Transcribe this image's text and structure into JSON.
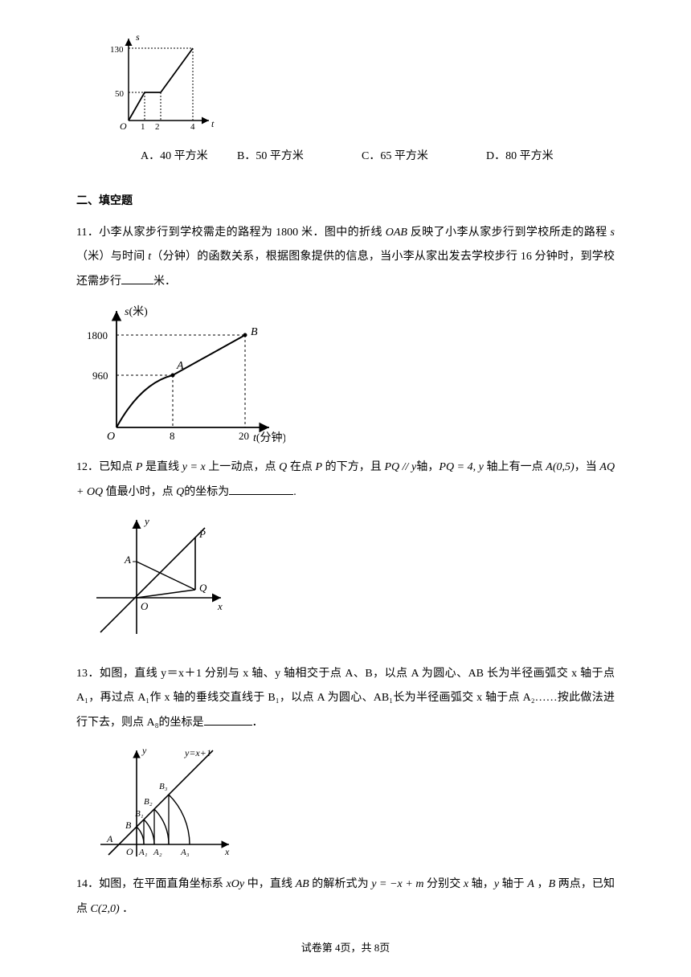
{
  "chart1": {
    "yaxis_label": "s",
    "xaxis_label": "t",
    "y_ticks": [
      "50",
      "130"
    ],
    "x_ticks": [
      "1",
      "2",
      "4"
    ],
    "origin": "O"
  },
  "choices10": {
    "a": "A．40 平方米",
    "b": "B．50 平方米",
    "c": "C．65 平方米",
    "d": "D．80 平方米",
    "a_width": 120,
    "b_width": 155,
    "c_width": 155,
    "d_width": 110
  },
  "section2_title": "二、填空题",
  "q11": {
    "text_1": "11．小李从家步行到学校需走的路程为 1800 米．图中的折线 ",
    "oab": "OAB",
    "text_2": " 反映了小李从家步行到学校所走的路程 ",
    "s": "s",
    "text_3": "（米）与时间 ",
    "t": "t",
    "text_4": "（分钟）的函数关系，根据图象提供的信息，当小李从家出发去学校步行 16 分钟时，到学校还需步行",
    "text_5": "米．"
  },
  "chart11": {
    "yaxis_label": "s(米)",
    "xaxis_label": "t(分钟)",
    "y_ticks": [
      "960",
      "1800"
    ],
    "x_ticks": [
      "8",
      "20"
    ],
    "origin": "O",
    "ptA": "A",
    "ptB": "B"
  },
  "q12": {
    "text_1": "12．已知点 ",
    "p": "P",
    "text_2": " 是直线 ",
    "eq1": "y = x",
    "text_3": " 上一动点，点 ",
    "q": "Q",
    "text_4": " 在点 ",
    "text_5": " 的下方，且 ",
    "eq2": "PQ // y",
    "text_6": "轴，",
    "eq3": "PQ = 4, y",
    "text_7": " 轴上有一点 ",
    "apoint": "A(0,5)",
    "text_8": "，当 ",
    "eq4": "AQ + OQ",
    "text_9": " 值最小时，点 ",
    "text_10": "的坐标为",
    "text_11": "."
  },
  "chart12": {
    "x": "x",
    "y": "y",
    "A": "A",
    "O": "O",
    "P": "P",
    "Q": "Q"
  },
  "q13": {
    "text": "13．如图，直线 y＝x＋1 分别与 x 轴、y 轴相交于点 A、B，以点 A 为圆心、AB 长为半径画弧交 x 轴于点 A₁，再过点 A₁作 x 轴的垂线交直线于 B₁，以点 A 为圆心、AB₁长为半径画弧交 x 轴于点 A₂……按此做法进行下去，则点 A₈的坐标是",
    "text_end": "．"
  },
  "chart13": {
    "eqn": "y=x+1",
    "y": "y",
    "x": "x",
    "A": "A",
    "B": "B",
    "O": "O",
    "B1": "B₁",
    "B2": "B₂",
    "B3": "B₃",
    "A1": "A₁",
    "A2": "A₂",
    "A3": "A₃"
  },
  "q14": {
    "text_1": "14．如图，在平面直角坐标系 ",
    "xoy": "xOy",
    "text_2": " 中，直线 ",
    "ab": "AB",
    "text_3": " 的解析式为 ",
    "eq": "y = −x + m",
    "text_4": " 分别交 ",
    "x": "x",
    "text_5": " 轴，",
    "y": "y",
    "text_6": " 轴于 ",
    "a": "A",
    "text_7": " ，",
    "b": "B",
    "text_8": " 两点，已知点 ",
    "c": "C(2,0)",
    "text_9": " ．"
  },
  "footer": "试卷第 4页，共 8页"
}
